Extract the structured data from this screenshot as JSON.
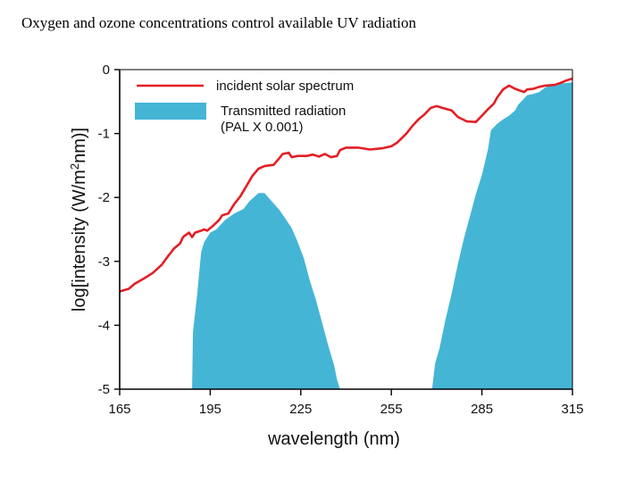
{
  "slide": {
    "title": "Oxygen and ozone concentrations control available UV radiation"
  },
  "chart_data": {
    "type": "area",
    "title": "Oxygen and ozone concentrations control available UV radiation",
    "xlabel": "wavelength (nm)",
    "ylabel_parts": [
      "log[intensity (W/m",
      "2",
      "nm)]"
    ],
    "xlim": [
      165,
      315
    ],
    "ylim": [
      -5,
      0
    ],
    "x_ticks": [
      165,
      195,
      225,
      255,
      285,
      315
    ],
    "x_tick_labels": [
      "165",
      "195",
      "225",
      "255",
      "285",
      "315"
    ],
    "y_ticks": [
      0,
      -1,
      -2,
      -3,
      -4,
      -5
    ],
    "y_tick_labels": [
      "0",
      "-1",
      "-2",
      "-3",
      "-4",
      "-5"
    ],
    "legend": {
      "placement": "top-left",
      "entries": [
        {
          "name": "incident solar spectrum",
          "kind": "line"
        },
        {
          "name": "Transmitted radiation",
          "name_line2": "(PAL X 0.001)",
          "kind": "area"
        }
      ]
    },
    "colors": {
      "incident": "#e31e24",
      "transmitted": "#45b5d6",
      "axis": "#000000"
    },
    "series": [
      {
        "name": "incident solar spectrum",
        "type": "line",
        "points": [
          [
            165,
            -3.47
          ],
          [
            168,
            -3.43
          ],
          [
            170,
            -3.35
          ],
          [
            173,
            -3.27
          ],
          [
            176,
            -3.18
          ],
          [
            179,
            -3.05
          ],
          [
            181,
            -2.92
          ],
          [
            183,
            -2.8
          ],
          [
            185,
            -2.72
          ],
          [
            186,
            -2.62
          ],
          [
            188,
            -2.55
          ],
          [
            189,
            -2.62
          ],
          [
            190,
            -2.55
          ],
          [
            192,
            -2.52
          ],
          [
            193,
            -2.5
          ],
          [
            194,
            -2.52
          ],
          [
            196,
            -2.44
          ],
          [
            198,
            -2.35
          ],
          [
            199,
            -2.28
          ],
          [
            201,
            -2.25
          ],
          [
            203,
            -2.1
          ],
          [
            205,
            -1.98
          ],
          [
            207,
            -1.82
          ],
          [
            209,
            -1.66
          ],
          [
            211,
            -1.55
          ],
          [
            213,
            -1.51
          ],
          [
            216,
            -1.49
          ],
          [
            218,
            -1.38
          ],
          [
            219,
            -1.32
          ],
          [
            221,
            -1.3
          ],
          [
            222,
            -1.37
          ],
          [
            224,
            -1.35
          ],
          [
            227,
            -1.35
          ],
          [
            229,
            -1.33
          ],
          [
            231,
            -1.36
          ],
          [
            233,
            -1.32
          ],
          [
            235,
            -1.37
          ],
          [
            237,
            -1.35
          ],
          [
            238,
            -1.26
          ],
          [
            240,
            -1.22
          ],
          [
            244,
            -1.22
          ],
          [
            248,
            -1.25
          ],
          [
            252,
            -1.23
          ],
          [
            255,
            -1.2
          ],
          [
            257,
            -1.14
          ],
          [
            260,
            -1.0
          ],
          [
            262,
            -0.88
          ],
          [
            264,
            -0.78
          ],
          [
            266,
            -0.7
          ],
          [
            268,
            -0.6
          ],
          [
            270,
            -0.57
          ],
          [
            272,
            -0.6
          ],
          [
            275,
            -0.64
          ],
          [
            277,
            -0.74
          ],
          [
            280,
            -0.81
          ],
          [
            283,
            -0.82
          ],
          [
            285,
            -0.72
          ],
          [
            287,
            -0.62
          ],
          [
            289,
            -0.53
          ],
          [
            290,
            -0.44
          ],
          [
            292,
            -0.31
          ],
          [
            294,
            -0.25
          ],
          [
            296,
            -0.3
          ],
          [
            299,
            -0.35
          ],
          [
            300,
            -0.31
          ],
          [
            302,
            -0.3
          ],
          [
            304,
            -0.27
          ],
          [
            306,
            -0.25
          ],
          [
            309,
            -0.24
          ],
          [
            311,
            -0.21
          ],
          [
            313,
            -0.17
          ],
          [
            315,
            -0.14
          ]
        ]
      },
      {
        "name": "Transmitted radiation (PAL X 0.001)",
        "type": "area",
        "baseline": -5,
        "segments": [
          [
            [
              189,
              -5.0
            ],
            [
              189.3,
              -4.1
            ],
            [
              190,
              -3.8
            ],
            [
              190.7,
              -3.5
            ],
            [
              191.3,
              -3.2
            ],
            [
              192,
              -2.85
            ],
            [
              193,
              -2.7
            ],
            [
              195,
              -2.55
            ],
            [
              197,
              -2.5
            ],
            [
              200,
              -2.35
            ],
            [
              203,
              -2.25
            ],
            [
              206,
              -2.18
            ],
            [
              208,
              -2.06
            ],
            [
              211,
              -1.93
            ],
            [
              213,
              -1.93
            ],
            [
              215,
              -2.04
            ],
            [
              218,
              -2.2
            ],
            [
              220,
              -2.34
            ],
            [
              222,
              -2.48
            ],
            [
              224,
              -2.7
            ],
            [
              226,
              -2.95
            ],
            [
              228,
              -3.3
            ],
            [
              230,
              -3.6
            ],
            [
              232,
              -3.95
            ],
            [
              234,
              -4.3
            ],
            [
              236,
              -4.62
            ],
            [
              237,
              -4.85
            ],
            [
              238,
              -5.0
            ]
          ],
          [
            [
              268.5,
              -5.0
            ],
            [
              269.5,
              -4.6
            ],
            [
              271,
              -4.35
            ],
            [
              273,
              -3.9
            ],
            [
              275,
              -3.5
            ],
            [
              277,
              -3.05
            ],
            [
              279,
              -2.65
            ],
            [
              281,
              -2.3
            ],
            [
              283,
              -1.95
            ],
            [
              285,
              -1.65
            ],
            [
              287,
              -1.25
            ],
            [
              288,
              -0.95
            ],
            [
              290,
              -0.85
            ],
            [
              292,
              -0.78
            ],
            [
              294,
              -0.72
            ],
            [
              296,
              -0.64
            ],
            [
              297,
              -0.55
            ],
            [
              299,
              -0.45
            ],
            [
              300,
              -0.4
            ],
            [
              302,
              -0.38
            ],
            [
              304,
              -0.35
            ],
            [
              306,
              -0.28
            ],
            [
              308,
              -0.24
            ],
            [
              311,
              -0.22
            ],
            [
              313,
              -0.21
            ],
            [
              315,
              -0.2
            ],
            [
              315,
              -5.0
            ]
          ]
        ]
      }
    ]
  }
}
